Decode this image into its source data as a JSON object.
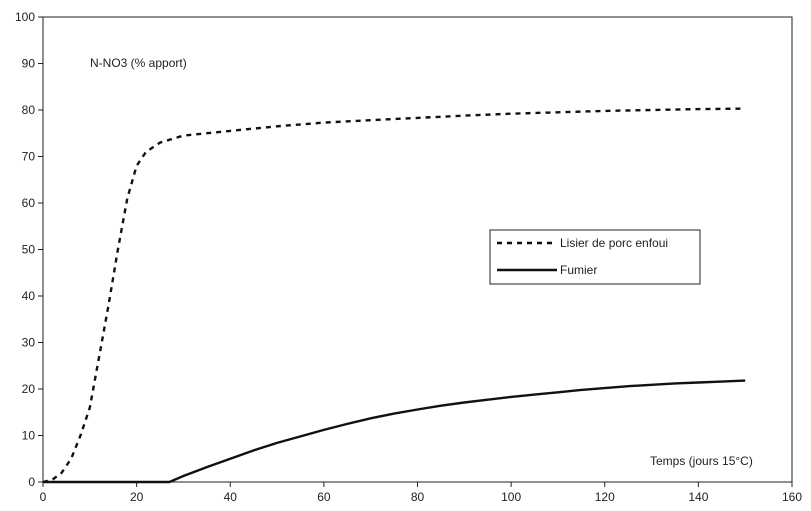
{
  "chart_data": {
    "type": "line",
    "ylabel": "N-NO3 (% apport)",
    "xlabel": "Temps (jours 15°C)",
    "xlim": [
      0,
      160
    ],
    "ylim": [
      0,
      100
    ],
    "x_ticks": [
      0,
      20,
      40,
      60,
      80,
      100,
      120,
      140,
      160
    ],
    "y_ticks": [
      0,
      10,
      20,
      30,
      40,
      50,
      60,
      70,
      80,
      90,
      100
    ],
    "grid": false,
    "legend_position": "center-right",
    "series": [
      {
        "name": "Lisier de porc enfoui",
        "style": "dashed",
        "color": "#111111",
        "points": [
          [
            0,
            0
          ],
          [
            2,
            0.5
          ],
          [
            4,
            2
          ],
          [
            6,
            5
          ],
          [
            8,
            10
          ],
          [
            10,
            16
          ],
          [
            12,
            27
          ],
          [
            14,
            38
          ],
          [
            16,
            50
          ],
          [
            18,
            61
          ],
          [
            20,
            68
          ],
          [
            22,
            71
          ],
          [
            25,
            73
          ],
          [
            30,
            74.5
          ],
          [
            40,
            75.5
          ],
          [
            50,
            76.5
          ],
          [
            60,
            77.3
          ],
          [
            70,
            77.8
          ],
          [
            80,
            78.3
          ],
          [
            90,
            78.8
          ],
          [
            100,
            79.2
          ],
          [
            110,
            79.5
          ],
          [
            120,
            79.8
          ],
          [
            130,
            80
          ],
          [
            140,
            80.2
          ],
          [
            150,
            80.3
          ]
        ]
      },
      {
        "name": "Fumier",
        "style": "solid",
        "color": "#111111",
        "points": [
          [
            0,
            0
          ],
          [
            27,
            0
          ],
          [
            30,
            1.3
          ],
          [
            35,
            3.2
          ],
          [
            40,
            5
          ],
          [
            45,
            6.8
          ],
          [
            50,
            8.4
          ],
          [
            55,
            9.8
          ],
          [
            60,
            11.2
          ],
          [
            65,
            12.5
          ],
          [
            70,
            13.7
          ],
          [
            75,
            14.7
          ],
          [
            80,
            15.6
          ],
          [
            85,
            16.4
          ],
          [
            90,
            17.1
          ],
          [
            95,
            17.7
          ],
          [
            100,
            18.3
          ],
          [
            105,
            18.8
          ],
          [
            110,
            19.3
          ],
          [
            115,
            19.8
          ],
          [
            120,
            20.2
          ],
          [
            125,
            20.6
          ],
          [
            130,
            20.9
          ],
          [
            135,
            21.2
          ],
          [
            140,
            21.4
          ],
          [
            145,
            21.6
          ],
          [
            150,
            21.8
          ]
        ]
      }
    ]
  }
}
